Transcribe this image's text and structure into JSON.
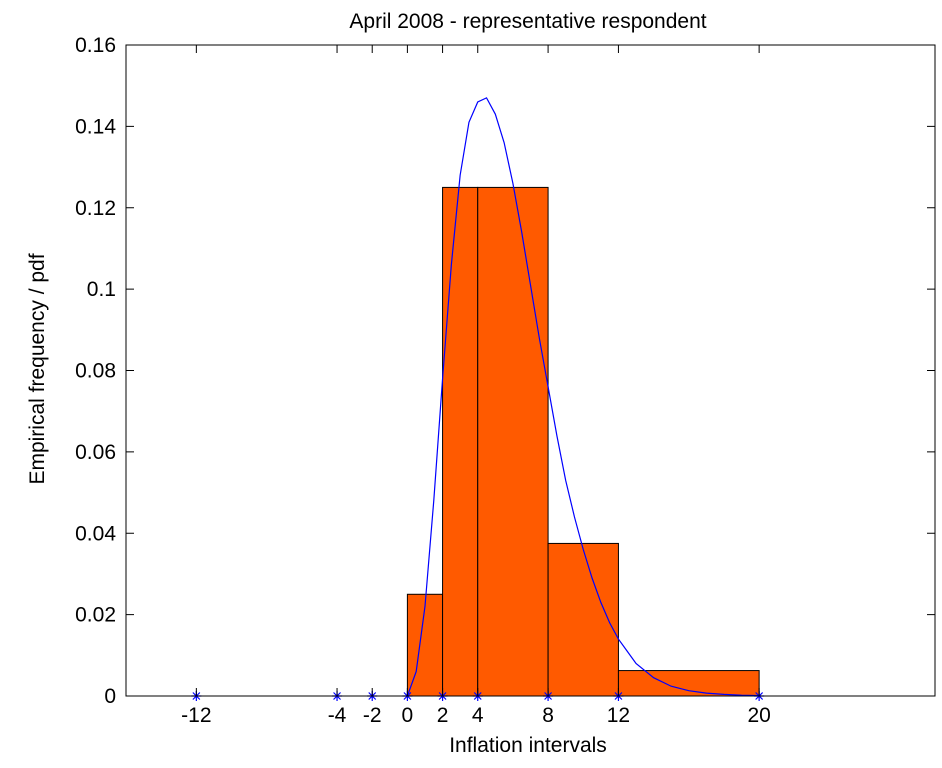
{
  "chart_data": {
    "type": "bar",
    "title": "April 2008 - representative respondent",
    "xlabel": "Inflation intervals",
    "ylabel": "Empirical frequency / pdf",
    "xlim": [
      -16,
      30
    ],
    "ylim": [
      0,
      0.16
    ],
    "x_ticks": [
      -12,
      -4,
      -2,
      0,
      2,
      4,
      8,
      12,
      20
    ],
    "y_ticks": [
      0,
      0.02,
      0.04,
      0.06,
      0.08,
      0.1,
      0.12,
      0.14,
      0.16
    ],
    "bins": [
      {
        "from": 0,
        "to": 2,
        "value": 0.025
      },
      {
        "from": 2,
        "to": 4,
        "value": 0.125
      },
      {
        "from": 4,
        "to": 8,
        "value": 0.125
      },
      {
        "from": 8,
        "to": 12,
        "value": 0.0375
      },
      {
        "from": 12,
        "to": 20,
        "value": 0.00625
      }
    ],
    "interval_markers": [
      -12,
      -4,
      -2,
      0,
      2,
      4,
      8,
      12,
      20
    ],
    "pdf_curve": {
      "x": [
        0,
        0.5,
        1,
        1.5,
        2,
        2.5,
        3,
        3.5,
        4,
        4.5,
        5,
        5.5,
        6,
        6.5,
        7,
        7.5,
        8,
        8.5,
        9,
        9.5,
        10,
        10.5,
        11,
        11.5,
        12,
        12.5,
        13,
        14,
        15,
        16,
        17,
        18,
        19,
        20
      ],
      "y": [
        0,
        0.006,
        0.022,
        0.048,
        0.078,
        0.106,
        0.128,
        0.141,
        0.146,
        0.147,
        0.143,
        0.136,
        0.126,
        0.114,
        0.101,
        0.088,
        0.076,
        0.064,
        0.053,
        0.044,
        0.036,
        0.029,
        0.023,
        0.018,
        0.014,
        0.011,
        0.008,
        0.0045,
        0.0024,
        0.0013,
        0.0007,
        0.0004,
        0.0002,
        0.0001
      ]
    },
    "grid": false,
    "legend": "none"
  },
  "colors": {
    "bar_fill": "#FF5A00",
    "bar_edge": "#000000",
    "curve": "#0000FF",
    "marker": "#0000FF",
    "axis": "#000000"
  }
}
